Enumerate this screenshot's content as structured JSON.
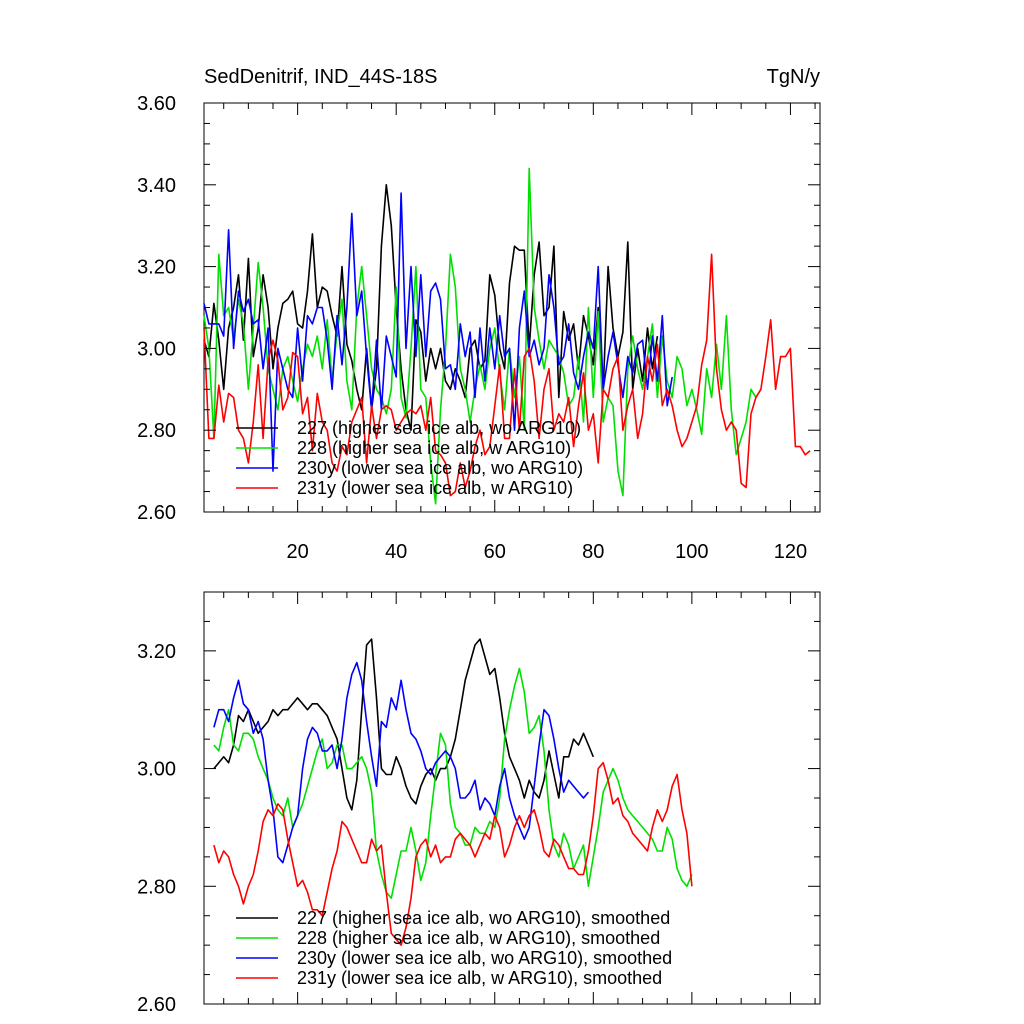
{
  "chart_data": [
    {
      "type": "line",
      "title_left": "SedDenitrif, IND_44S-18S",
      "title_right": "TgN/y",
      "xlim": [
        1,
        126
      ],
      "ylim": [
        2.6,
        3.6
      ],
      "x_ticks": [
        20,
        40,
        60,
        80,
        100,
        120
      ],
      "x_tick_labels": [
        "20",
        "40",
        "60",
        "80",
        "100",
        "120"
      ],
      "y_ticks": [
        2.6,
        2.8,
        3.0,
        3.2,
        3.4,
        3.6
      ],
      "y_tick_labels": [
        "2.60",
        "2.80",
        "3.00",
        "3.20",
        "3.40",
        "3.60"
      ],
      "legend_position": "bottom-left",
      "series": [
        {
          "name": "227 (higher sea ice alb, wo ARG10)",
          "color": "#000000",
          "x_start": 1,
          "values": [
            3.02,
            2.98,
            3.11,
            3.02,
            2.9,
            3.05,
            3.1,
            3.18,
            3.02,
            3.22,
            2.98,
            3.05,
            3.18,
            3.1,
            2.95,
            3.05,
            3.11,
            3.12,
            3.14,
            3.06,
            3.05,
            3.14,
            3.28,
            3.1,
            3.15,
            3.14,
            3.08,
            3.03,
            3.2,
            3.01,
            2.97,
            2.9,
            2.85,
            3.0,
            2.85,
            2.95,
            3.25,
            3.4,
            3.3,
            3.1,
            2.95,
            2.85,
            2.8,
            3.07,
            3.04,
            2.92,
            3.0,
            2.95,
            3.0,
            2.92,
            2.9,
            2.95,
            2.92,
            2.88,
            3.0,
            3.02,
            2.95,
            2.97,
            3.18,
            3.13,
            3.0,
            2.95,
            3.16,
            3.25,
            3.24,
            3.24,
            3.0,
            3.18,
            3.26,
            3.08,
            3.1,
            3.25,
            2.88,
            3.09,
            3.02,
            3.06,
            2.95,
            3.08,
            3.03,
            2.96,
            3.1,
            2.9,
            3.2,
            3.05,
            2.98,
            3.04,
            3.26,
            2.9,
            3.0,
            2.92,
            3.05,
            2.95,
            3.03
          ]
        },
        {
          "name": "228 (higher sea ice alb, w ARG10)",
          "color": "#00e000",
          "x_start": 1,
          "values": [
            3.08,
            3.0,
            2.78,
            3.23,
            3.08,
            3.1,
            3.02,
            3.12,
            3.06,
            2.9,
            3.05,
            3.21,
            3.1,
            2.95,
            2.9,
            2.85,
            2.95,
            2.98,
            2.92,
            2.87,
            2.95,
            3.01,
            2.98,
            3.03,
            2.95,
            3.07,
            2.92,
            3.04,
            3.12,
            2.92,
            2.85,
            3.1,
            3.2,
            3.08,
            2.95,
            2.9,
            2.88,
            2.84,
            2.9,
            3.15,
            2.88,
            2.83,
            3.0,
            3.2,
            2.9,
            2.88,
            2.72,
            2.62,
            2.85,
            3.0,
            3.23,
            3.15,
            2.95,
            2.9,
            2.82,
            2.9,
            2.96,
            2.9,
            3.0,
            3.05,
            2.94,
            2.85,
            3.0,
            2.88,
            2.98,
            2.8,
            3.44,
            3.1,
            3.02,
            2.95,
            3.02,
            3.0,
            2.98,
            2.94,
            2.86,
            2.88,
            2.98,
            2.82,
            3.1,
            2.88,
            3.09,
            2.82,
            2.88,
            2.86,
            2.7,
            2.64,
            2.95,
            3.03,
            2.95,
            2.9,
            2.98,
            3.06,
            2.88,
            3.03,
            2.92,
            2.88,
            2.98,
            2.95,
            2.86,
            2.9,
            2.85,
            2.79,
            2.95,
            2.88,
            3.01,
            2.9,
            3.08,
            2.85,
            2.74,
            2.78,
            2.82,
            2.9,
            2.88,
            2.9
          ]
        },
        {
          "name": "230y (lower sea ice alb, wo ARG10)",
          "color": "#0000ff",
          "x_start": 1,
          "values": [
            3.11,
            3.06,
            3.06,
            3.06,
            3.03,
            3.29,
            3.0,
            3.14,
            3.09,
            3.12,
            3.06,
            3.07,
            2.95,
            3.05,
            2.7,
            3.0,
            2.95,
            2.9,
            2.88,
            3.05,
            2.92,
            3.08,
            3.06,
            3.1,
            3.1,
            3.02,
            2.9,
            3.08,
            2.96,
            3.1,
            3.33,
            3.08,
            3.14,
            2.98,
            2.85,
            3.02,
            2.85,
            3.03,
            2.98,
            2.93,
            3.38,
            3.0,
            3.2,
            2.98,
            3.18,
            2.98,
            3.14,
            3.16,
            3.12,
            2.95,
            2.96,
            2.9,
            3.06,
            2.98,
            3.04,
            2.88,
            3.05,
            2.92,
            3.05,
            2.95,
            3.08,
            2.98,
            3.0,
            2.8,
            3.05,
            3.14,
            2.98,
            3.02,
            2.96,
            3.0,
            3.18,
            3.1,
            2.96,
            2.98,
            3.06,
            2.94,
            2.9,
            2.98,
            3.04,
            3.0,
            3.2,
            2.9,
            2.98,
            3.04,
            2.96,
            2.88,
            2.98,
            2.94,
            3.01,
            3.02,
            2.9,
            3.03,
            2.92,
            3.08,
            2.86,
            2.93
          ]
        },
        {
          "name": "231y (lower sea ice alb, w ARG10)",
          "color": "#ff0000",
          "x_start": 1,
          "values": [
            3.05,
            2.78,
            2.78,
            2.91,
            2.82,
            2.89,
            2.88,
            2.8,
            2.78,
            2.72,
            2.82,
            2.96,
            2.78,
            2.97,
            3.02,
            2.97,
            2.85,
            2.88,
            2.99,
            2.98,
            2.84,
            2.88,
            2.75,
            2.89,
            2.82,
            2.8,
            2.72,
            2.7,
            2.76,
            2.74,
            2.82,
            2.85,
            2.88,
            2.72,
            2.86,
            2.78,
            2.85,
            2.86,
            2.85,
            2.8,
            2.82,
            2.84,
            2.85,
            2.84,
            2.86,
            2.8,
            2.88,
            2.75,
            2.74,
            2.72,
            2.64,
            2.65,
            2.72,
            2.66,
            2.7,
            2.76,
            2.8,
            2.74,
            2.76,
            2.86,
            2.96,
            2.78,
            2.78,
            2.95,
            2.8,
            2.98,
            3.0,
            2.92,
            2.78,
            2.9,
            2.95,
            2.8,
            2.84,
            2.82,
            2.88,
            2.76,
            2.86,
            2.94,
            2.8,
            2.84,
            2.72,
            2.9,
            2.88,
            2.95,
            2.98,
            2.8,
            2.86,
            2.9,
            2.78,
            2.84,
            2.98,
            2.92,
            3.01,
            2.86,
            2.9,
            2.86,
            2.8,
            2.76,
            2.78,
            2.82,
            2.86,
            2.96,
            3.02,
            3.23,
            2.95,
            2.85,
            2.8,
            2.82,
            2.8,
            2.67,
            2.66,
            2.84,
            2.88,
            2.9,
            2.98,
            3.07,
            2.9,
            2.98,
            2.98,
            3.0,
            2.76,
            2.76,
            2.74,
            2.75
          ]
        }
      ]
    },
    {
      "type": "line",
      "xlim": [
        1,
        126
      ],
      "ylim": [
        2.6,
        3.3
      ],
      "x_ticks": [
        20,
        40,
        60,
        80,
        100,
        120
      ],
      "y_ticks": [
        2.6,
        2.8,
        3.0,
        3.2
      ],
      "y_tick_labels": [
        "2.60",
        "2.80",
        "3.00",
        "3.20"
      ],
      "legend_position": "bottom-left",
      "series": [
        {
          "name": "227 (higher sea ice alb, wo ARG10), smoothed",
          "color": "#000000",
          "x_start": 3,
          "values": [
            3.0,
            3.01,
            3.02,
            3.01,
            3.04,
            3.09,
            3.08,
            3.1,
            3.08,
            3.06,
            3.07,
            3.08,
            3.1,
            3.09,
            3.1,
            3.1,
            3.11,
            3.12,
            3.11,
            3.1,
            3.11,
            3.11,
            3.1,
            3.09,
            3.07,
            3.05,
            3.0,
            2.95,
            2.93,
            2.98,
            3.1,
            3.21,
            3.22,
            3.12,
            3.0,
            2.99,
            2.99,
            3.02,
            3.0,
            2.97,
            2.95,
            2.94,
            2.97,
            2.99,
            3.0,
            2.98,
            3.0,
            3.0,
            3.02,
            3.05,
            3.1,
            3.15,
            3.18,
            3.21,
            3.22,
            3.19,
            3.16,
            3.17,
            3.12,
            3.06,
            3.02,
            3.0,
            2.98,
            2.95,
            2.98,
            2.96,
            2.95,
            2.98,
            3.03,
            2.99,
            2.95,
            3.02,
            3.02,
            3.05,
            3.04,
            3.06,
            3.04,
            3.02
          ]
        },
        {
          "name": "228 (higher sea ice alb, w ARG10), smoothed",
          "color": "#00e000",
          "x_start": 3,
          "values": [
            3.04,
            3.03,
            3.07,
            3.1,
            3.04,
            3.03,
            3.06,
            3.06,
            3.05,
            3.02,
            3.0,
            2.98,
            2.95,
            2.93,
            2.92,
            2.95,
            2.9,
            2.92,
            2.94,
            2.97,
            3.0,
            3.03,
            3.05,
            3.0,
            3.01,
            3.04,
            3.04,
            3.0,
            3.0,
            3.01,
            3.02,
            3.0,
            2.96,
            2.86,
            2.82,
            2.79,
            2.78,
            2.82,
            2.86,
            2.86,
            2.9,
            2.86,
            2.81,
            2.84,
            2.92,
            2.99,
            3.06,
            3.04,
            2.94,
            2.9,
            2.89,
            2.87,
            2.87,
            2.9,
            2.89,
            2.89,
            2.91,
            2.9,
            2.95,
            3.05,
            3.1,
            3.14,
            3.17,
            3.13,
            3.06,
            3.07,
            3.09,
            3.03,
            2.93,
            2.87,
            2.85,
            2.89,
            2.87,
            2.83,
            2.85,
            2.87,
            2.8,
            2.85,
            2.9,
            2.96,
            2.98,
            3.0,
            2.98,
            2.95,
            2.93,
            2.92,
            2.91,
            2.9,
            2.89,
            2.88,
            2.86,
            2.86,
            2.9,
            2.88,
            2.83,
            2.81,
            2.8,
            2.82
          ]
        },
        {
          "name": "230y (lower sea ice alb, wo ARG10), smoothed",
          "color": "#0000ff",
          "x_start": 3,
          "values": [
            3.07,
            3.1,
            3.1,
            3.08,
            3.12,
            3.15,
            3.11,
            3.1,
            3.06,
            3.08,
            3.05,
            2.98,
            2.93,
            2.85,
            2.84,
            2.87,
            2.9,
            2.92,
            3.0,
            3.05,
            3.07,
            3.06,
            3.03,
            3.03,
            3.04,
            3.0,
            3.05,
            3.12,
            3.16,
            3.18,
            3.15,
            3.08,
            3.02,
            2.97,
            3.08,
            3.07,
            3.12,
            3.1,
            3.15,
            3.1,
            3.06,
            3.05,
            3.03,
            3.0,
            2.99,
            3.01,
            3.02,
            3.03,
            3.02,
            3.0,
            2.95,
            2.95,
            2.96,
            2.98,
            2.93,
            2.95,
            2.94,
            2.92,
            2.97,
            3.0,
            2.95,
            2.92,
            2.9,
            2.88,
            2.9,
            2.97,
            3.04,
            3.1,
            3.09,
            3.05,
            3.0,
            2.96,
            2.98,
            2.97,
            2.96,
            2.95,
            2.96
          ]
        },
        {
          "name": "231y (lower sea ice alb, w ARG10), smoothed",
          "color": "#ff0000",
          "x_start": 3,
          "values": [
            2.87,
            2.84,
            2.86,
            2.85,
            2.82,
            2.8,
            2.77,
            2.8,
            2.82,
            2.86,
            2.91,
            2.93,
            2.92,
            2.94,
            2.93,
            2.88,
            2.84,
            2.8,
            2.81,
            2.79,
            2.76,
            2.76,
            2.75,
            2.79,
            2.83,
            2.86,
            2.91,
            2.9,
            2.88,
            2.86,
            2.84,
            2.84,
            2.88,
            2.86,
            2.87,
            2.79,
            2.72,
            2.71,
            2.7,
            2.73,
            2.78,
            2.85,
            2.87,
            2.88,
            2.85,
            2.87,
            2.84,
            2.85,
            2.85,
            2.88,
            2.89,
            2.88,
            2.87,
            2.85,
            2.87,
            2.89,
            2.88,
            2.92,
            2.9,
            2.85,
            2.87,
            2.9,
            2.92,
            2.9,
            2.92,
            2.93,
            2.9,
            2.86,
            2.85,
            2.88,
            2.87,
            2.85,
            2.83,
            2.83,
            2.82,
            2.82,
            2.86,
            2.92,
            3.0,
            3.01,
            2.98,
            2.94,
            2.95,
            2.92,
            2.91,
            2.89,
            2.88,
            2.87,
            2.86,
            2.9,
            2.93,
            2.91,
            2.93,
            2.97,
            2.99,
            2.93,
            2.89,
            2.8
          ]
        }
      ]
    }
  ]
}
